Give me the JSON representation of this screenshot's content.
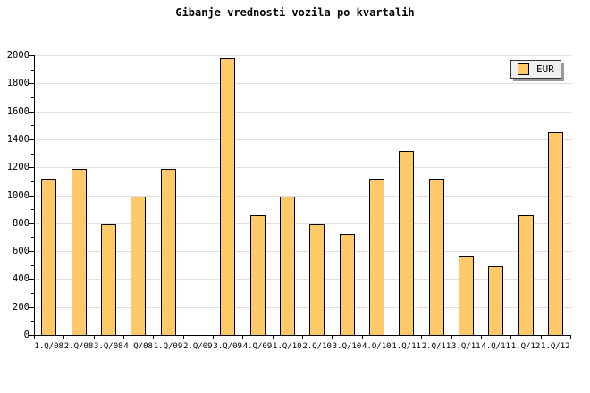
{
  "title": "Gibanje vrednosti vozila po kvartalih",
  "legend": {
    "label": "EUR"
  },
  "colors": {
    "bar_fill": "#FFC96A",
    "bar_border": "#000000",
    "grid": "#E0E0E0",
    "axis": "#000000",
    "legend_bg": "#F0F0F0",
    "legend_shadow": "#999999",
    "background": "#FFFFFF",
    "text": "#000000"
  },
  "chart_data": {
    "type": "bar",
    "title": "Gibanje vrednosti vozila po kvartalih",
    "categories": [
      "1.Q/08",
      "2.Q/08",
      "3.Q/08",
      "4.Q/08",
      "1.Q/09",
      "2.Q/09",
      "3.Q/09",
      "4.Q/09",
      "1.Q/10",
      "2.Q/10",
      "3.Q/10",
      "4.Q/10",
      "1.Q/11",
      "2.Q/11",
      "3.Q/11",
      "4.Q/11",
      "1.Q/12",
      "1.Q/12"
    ],
    "values": [
      1120,
      1190,
      790,
      990,
      1190,
      null,
      1980,
      855,
      990,
      790,
      725,
      1120,
      1315,
      1120,
      560,
      495,
      855,
      1450
    ],
    "series_name": "EUR",
    "unit": "EUR",
    "xlabel": "",
    "ylabel": "",
    "ylim": [
      0,
      2000
    ],
    "ytick_major": 200,
    "ytick_minor": 100,
    "ytick_labels": [
      "0",
      "200",
      "400",
      "600",
      "800",
      "1000",
      "1200",
      "1400",
      "1600",
      "1800",
      "2000"
    ],
    "grid": "horizontal-major",
    "legend_entries": [
      "EUR"
    ],
    "legend_position": "top-right",
    "missing_categories": [
      "2.Q/09"
    ]
  }
}
